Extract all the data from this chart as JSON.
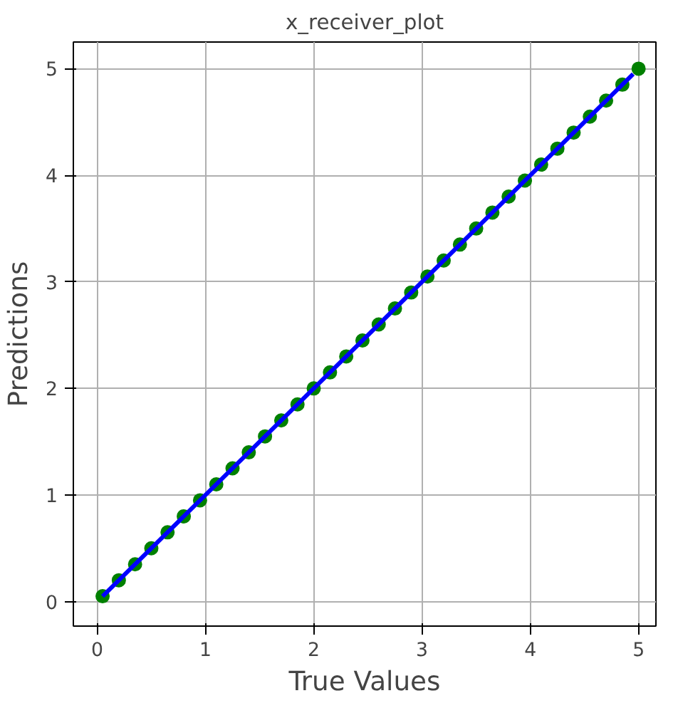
{
  "chart_data": {
    "type": "scatter",
    "title": "x_receiver_plot",
    "xlabel": "True Values",
    "ylabel": "Predictions",
    "xlim": [
      -0.22,
      5.16
    ],
    "ylim": [
      -0.23,
      5.25
    ],
    "xticks": [
      0,
      1,
      2,
      3,
      4,
      5
    ],
    "yticks": [
      0,
      1,
      2,
      3,
      4,
      5
    ],
    "grid": true,
    "series": [
      {
        "marker": "circle",
        "color": "#008000",
        "x": [
          0.05,
          0.2,
          0.35,
          0.5,
          0.65,
          0.8,
          0.95,
          1.1,
          1.25,
          1.4,
          1.55,
          1.7,
          1.85,
          2.0,
          2.15,
          2.3,
          2.45,
          2.6,
          2.75,
          2.9,
          3.05,
          3.2,
          3.35,
          3.5,
          3.65,
          3.8,
          3.95,
          4.1,
          4.25,
          4.4,
          4.55,
          4.7,
          4.85,
          5.0
        ],
        "values": [
          0.05,
          0.2,
          0.35,
          0.5,
          0.65,
          0.8,
          0.95,
          1.1,
          1.25,
          1.4,
          1.55,
          1.7,
          1.85,
          2.0,
          2.15,
          2.3,
          2.45,
          2.6,
          2.75,
          2.9,
          3.05,
          3.2,
          3.35,
          3.5,
          3.65,
          3.8,
          3.95,
          4.1,
          4.25,
          4.4,
          4.55,
          4.7,
          4.85,
          5.0
        ]
      },
      {
        "type": "line",
        "marker": "none",
        "color": "#0000ff",
        "x": [
          0.05,
          4.95
        ],
        "values": [
          0.05,
          4.95
        ]
      }
    ]
  }
}
